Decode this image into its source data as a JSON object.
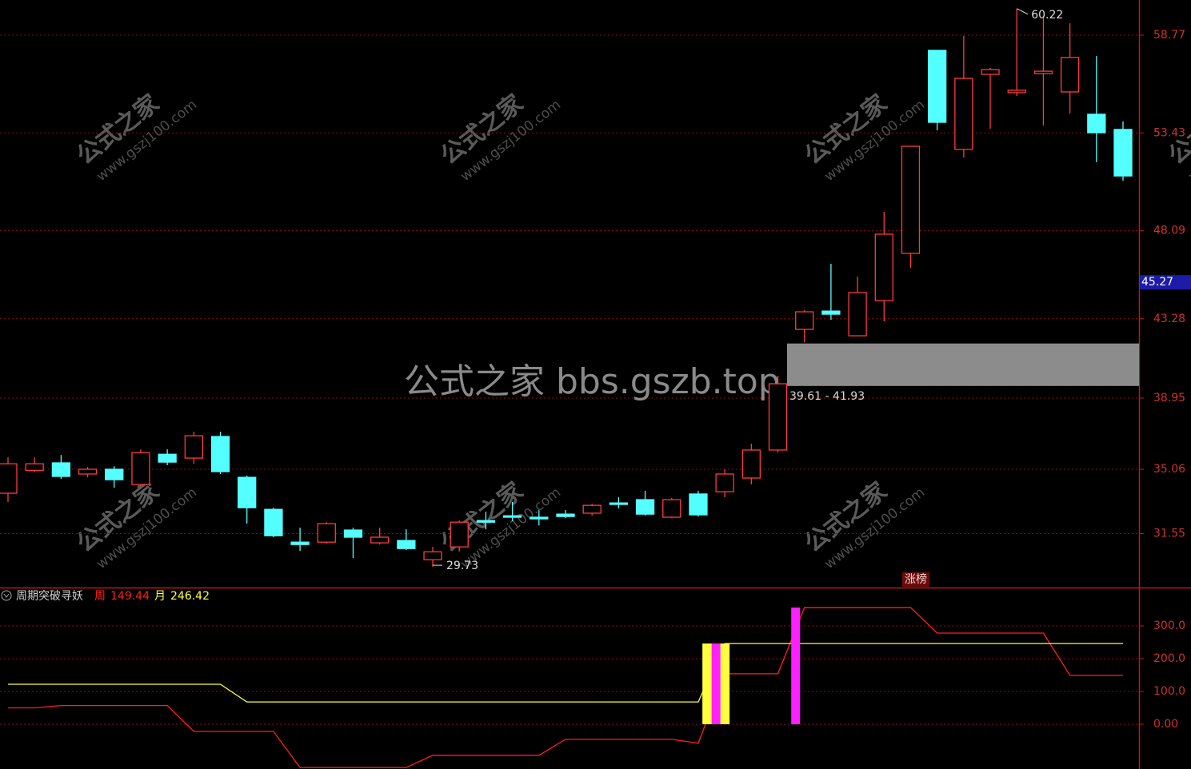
{
  "chart_data": [
    {
      "type": "candlestick",
      "open": [
        33.75,
        35.0,
        35.41,
        34.8,
        35.06,
        34.23,
        35.88,
        35.67,
        36.85,
        34.62,
        32.87,
        31.08,
        31.08,
        31.74,
        31.04,
        31.17,
        30.12,
        30.82,
        32.26,
        32.52,
        32.44,
        32.61,
        32.66,
        33.22,
        33.4,
        32.44,
        33.71,
        33.83,
        34.58,
        36.11,
        42.7,
        43.7,
        42.35,
        44.27,
        46.85,
        57.94,
        52.53,
        56.63,
        55.63,
        56.67,
        55.67,
        54.45,
        53.62
      ],
      "high": [
        35.71,
        35.71,
        35.84,
        35.19,
        35.23,
        36.15,
        36.15,
        37.11,
        37.11,
        34.71,
        32.96,
        31.87,
        32.17,
        31.87,
        31.87,
        31.78,
        30.82,
        32.26,
        32.74,
        33.27,
        32.83,
        32.83,
        33.18,
        33.53,
        33.88,
        33.49,
        33.88,
        35.06,
        36.46,
        40.17,
        43.75,
        46.28,
        45.58,
        49.12,
        52.7,
        57.94,
        58.73,
        56.98,
        60.22,
        59.82,
        59.42,
        57.63,
        54.06
      ],
      "low": [
        33.27,
        34.9,
        34.53,
        34.62,
        34.05,
        34.14,
        35.28,
        35.36,
        34.8,
        32.09,
        31.35,
        30.6,
        30.99,
        30.21,
        30.95,
        30.65,
        29.73,
        30.56,
        31.78,
        32.22,
        32.0,
        32.39,
        32.52,
        32.92,
        32.52,
        32.39,
        32.48,
        33.53,
        34.23,
        35.97,
        42.0,
        43.22,
        42.35,
        43.14,
        46.06,
        53.57,
        52.09,
        53.66,
        55.45,
        53.84,
        54.49,
        51.83,
        50.82
      ],
      "close": [
        35.36,
        35.36,
        34.67,
        35.06,
        34.49,
        35.97,
        35.45,
        36.89,
        34.93,
        32.96,
        31.43,
        30.95,
        32.09,
        31.35,
        31.35,
        30.73,
        30.55,
        32.17,
        32.17,
        32.44,
        32.35,
        32.48,
        33.09,
        33.14,
        32.61,
        33.4,
        32.57,
        34.8,
        36.11,
        39.73,
        43.66,
        43.53,
        44.71,
        47.9,
        52.7,
        54.01,
        56.41,
        56.89,
        55.76,
        56.8,
        57.55,
        53.44,
        51.08
      ],
      "up_color": "#ff3b3b",
      "down_color": "#54ffff",
      "ylim": [
        28.6,
        60.69
      ],
      "yticks": [
        31.55,
        35.06,
        38.95,
        43.28,
        48.09,
        53.43,
        58.77
      ],
      "grid": true,
      "last_price": 45.27,
      "high_label": 60.22,
      "low_label": 29.73,
      "gap_zone": {
        "low": 39.61,
        "high": 41.93,
        "label": "39.61 - 41.93"
      },
      "tag": "涨榜",
      "watermark": "公式之家 bbs.gszb.top",
      "watermark_brand": "公式之家",
      "watermark_url": "www.gszj100.com"
    },
    {
      "type": "line",
      "title": "周期突破寻妖",
      "series": [
        {
          "name": "周",
          "color": "#ff2020",
          "values": [
            50,
            50,
            57,
            57,
            57,
            57,
            57,
            -22,
            -22,
            -22,
            -22,
            -132,
            -132,
            -132,
            -132,
            -132,
            -95,
            -95,
            -95,
            -95,
            -95,
            -46,
            -46,
            -46,
            -46,
            -46,
            -58,
            154,
            154,
            154,
            356,
            356,
            356,
            356,
            356,
            278,
            278,
            278,
            278,
            278,
            149.44,
            149.44,
            149.44
          ]
        },
        {
          "name": "月",
          "color": "#ffff40",
          "values": [
            122,
            122,
            122,
            122,
            122,
            122,
            122,
            122,
            122,
            68,
            68,
            68,
            68,
            68,
            68,
            68,
            68,
            68,
            68,
            68,
            68,
            68,
            68,
            68,
            68,
            68,
            68,
            246.42,
            246.42,
            246.42,
            246.42,
            246.42,
            246.42,
            246.42,
            246.42,
            246.42,
            246.42,
            246.42,
            246.42,
            246.42,
            246.42,
            246.42,
            246.42
          ]
        }
      ],
      "bars": [
        {
          "color": "#ffff40",
          "values": [
            null,
            null,
            null,
            null,
            null,
            null,
            null,
            null,
            null,
            null,
            null,
            null,
            null,
            null,
            null,
            null,
            null,
            null,
            null,
            null,
            null,
            null,
            null,
            null,
            null,
            null,
            null,
            246.42,
            null,
            null,
            null,
            null,
            null,
            null,
            null,
            null,
            null,
            null,
            null,
            null,
            null,
            null,
            null
          ]
        },
        {
          "color": "#ff20ff",
          "values": [
            null,
            null,
            null,
            null,
            null,
            null,
            null,
            null,
            null,
            null,
            null,
            null,
            null,
            null,
            null,
            null,
            null,
            null,
            null,
            null,
            null,
            null,
            null,
            null,
            null,
            null,
            null,
            246.42,
            null,
            null,
            356,
            null,
            null,
            null,
            null,
            null,
            null,
            null,
            null,
            null,
            null,
            null,
            null
          ]
        }
      ],
      "ylim": [
        -136.6,
        417.1
      ],
      "yticks": [
        {
          "value": 0,
          "label": "0.00"
        },
        {
          "value": 100,
          "label": "100.0"
        },
        {
          "value": 200,
          "label": "200.0"
        },
        {
          "value": 300,
          "label": "300.0"
        }
      ],
      "grid": true
    }
  ]
}
